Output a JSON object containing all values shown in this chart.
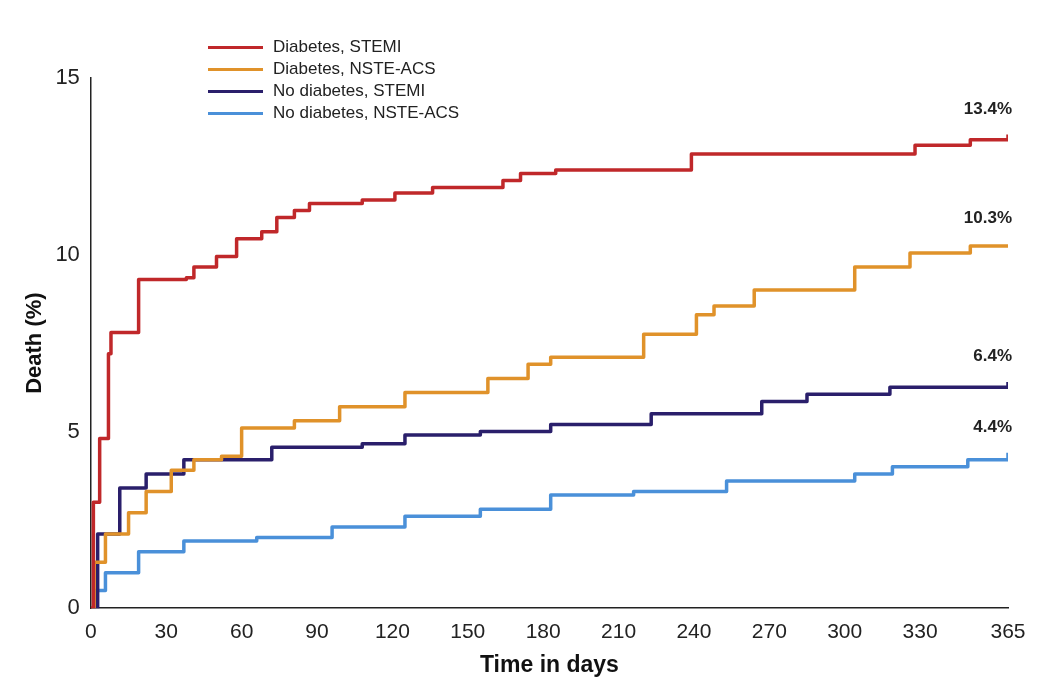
{
  "chart_data": {
    "type": "step",
    "xlabel": "Time in days",
    "ylabel": "Death (%)",
    "xlim": [
      0,
      365
    ],
    "xticks": [
      0,
      30,
      60,
      90,
      120,
      150,
      180,
      210,
      240,
      270,
      300,
      330,
      365
    ],
    "ylim": [
      0,
      15
    ],
    "yticks": [
      0,
      5,
      10,
      15
    ],
    "legend": "top left",
    "grid": false,
    "marker": "none",
    "line_style": "solid",
    "series": [
      {
        "name": "Diabetes, STEMI",
        "color": "#c0282a",
        "x": [
          0,
          1,
          3.5,
          7,
          8,
          19,
          38,
          41,
          50,
          58,
          68,
          74,
          81,
          87,
          108,
          121,
          136,
          164,
          171,
          185,
          239,
          328,
          350,
          364,
          365
        ],
        "values": [
          0,
          3,
          4.8,
          7.2,
          7.8,
          9.3,
          9.35,
          9.65,
          9.95,
          10.45,
          10.65,
          11.05,
          11.25,
          11.45,
          11.55,
          11.75,
          11.9,
          12.1,
          12.3,
          12.4,
          12.85,
          13.1,
          13.25,
          13.25,
          13.4
        ]
      },
      {
        "name": "Diabetes, NSTE-ACS",
        "color": "#e0922a",
        "x": [
          0,
          1.3,
          5.8,
          15,
          22,
          32,
          41,
          52,
          60,
          81,
          99,
          125,
          158,
          174,
          183,
          220,
          241,
          248,
          264,
          285,
          304,
          326,
          350,
          365
        ],
        "values": [
          0,
          1.3,
          2.1,
          2.7,
          3.3,
          3.9,
          4.2,
          4.3,
          5.1,
          5.3,
          5.7,
          6.1,
          6.5,
          6.9,
          7.1,
          7.75,
          8.3,
          8.55,
          9,
          9,
          9.65,
          10.05,
          10.25,
          10.3
        ]
      },
      {
        "name": "No diabetes, STEMI",
        "color": "#2a1f6b",
        "x": [
          0,
          2.7,
          11.5,
          22,
          37,
          55,
          72,
          108,
          125,
          155,
          183,
          223,
          267,
          285,
          318,
          365
        ],
        "values": [
          0,
          2.1,
          3.4,
          3.8,
          4.2,
          4.2,
          4.55,
          4.65,
          4.9,
          5,
          5.2,
          5.5,
          5.85,
          6.05,
          6.25,
          6.4
        ]
      },
      {
        "name": "No diabetes, NSTE-ACS",
        "color": "#4a90d9",
        "x": [
          0,
          1.3,
          5.8,
          19,
          37,
          66,
          96,
          125,
          155,
          183,
          216,
          253,
          304,
          319,
          349,
          365
        ],
        "values": [
          0,
          0.5,
          1,
          1.6,
          1.9,
          2,
          2.3,
          2.6,
          2.8,
          3.2,
          3.3,
          3.6,
          3.8,
          4,
          4.2,
          4.4
        ]
      }
    ],
    "annotations": [
      "13.4%",
      "10.3%",
      "6.4%",
      "4.4%"
    ]
  }
}
